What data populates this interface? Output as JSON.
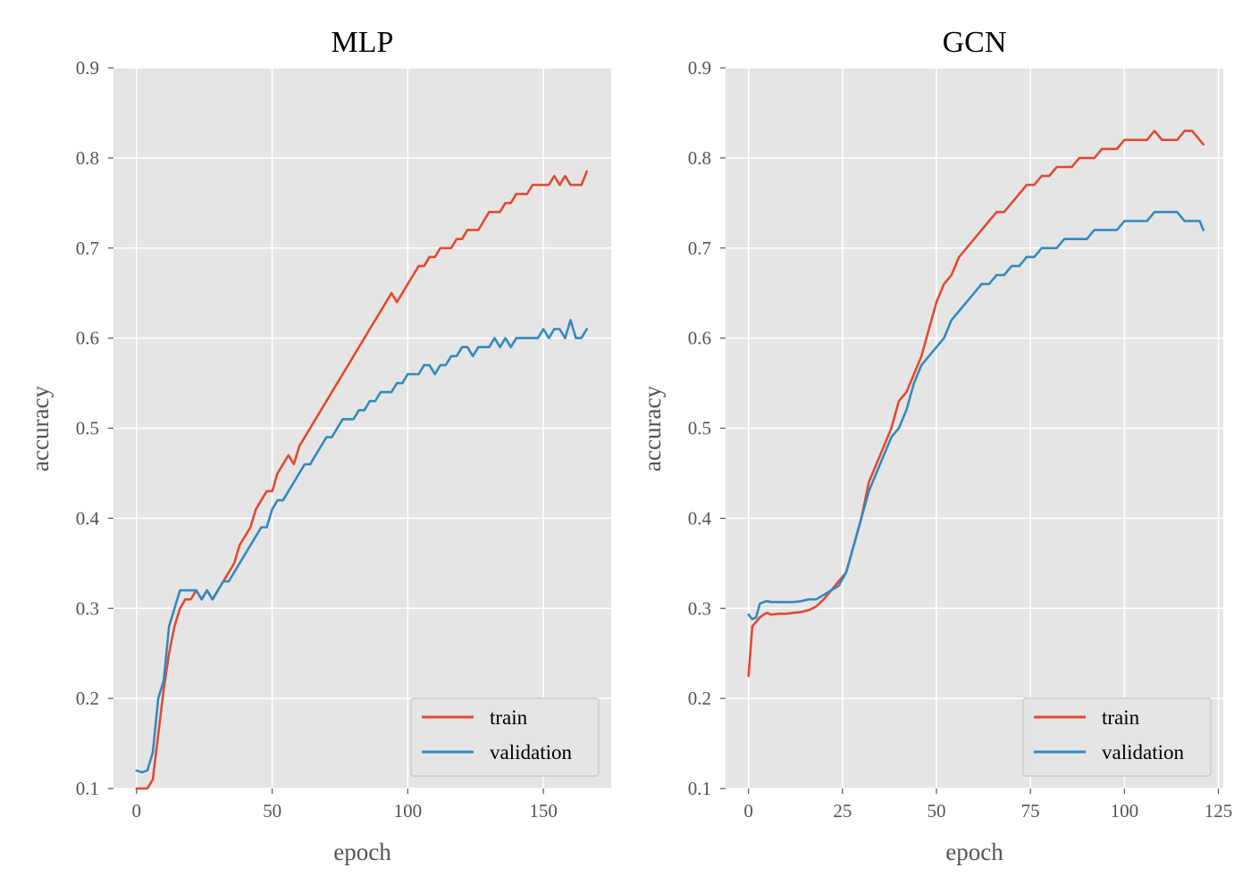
{
  "colors": {
    "figure_bg": "#ffffff",
    "axes_bg": "#e5e5e5",
    "grid": "#ffffff",
    "tick_text": "#555555",
    "title_text": "#000000",
    "train": "#e24a33",
    "validation": "#348abd",
    "legend_bg": "#e5e5e5",
    "legend_border": "#cccccc"
  },
  "chart_data": [
    {
      "type": "line",
      "title": "MLP",
      "xlabel": "epoch",
      "ylabel": "accuracy",
      "xlim": [
        -8.5,
        175
      ],
      "ylim": [
        0.1,
        0.9
      ],
      "xticks": [
        0,
        50,
        100,
        150
      ],
      "yticks": [
        0.1,
        0.2,
        0.3,
        0.4,
        0.5,
        0.6,
        0.7,
        0.8,
        0.9
      ],
      "xtick_labels": [
        "0",
        "50",
        "100",
        "150"
      ],
      "ytick_labels": [
        "0.1",
        "0.2",
        "0.3",
        "0.4",
        "0.5",
        "0.6",
        "0.7",
        "0.8",
        "0.9"
      ],
      "grid": true,
      "legend": "bottom-right",
      "series": [
        {
          "name": "train",
          "color": "#e24a33",
          "x": [
            0,
            2,
            4,
            6,
            8,
            10,
            12,
            14,
            16,
            18,
            20,
            22,
            24,
            26,
            28,
            30,
            32,
            34,
            36,
            38,
            40,
            42,
            44,
            46,
            48,
            50,
            52,
            54,
            56,
            58,
            60,
            62,
            64,
            66,
            68,
            70,
            72,
            74,
            76,
            78,
            80,
            82,
            84,
            86,
            88,
            90,
            92,
            94,
            96,
            98,
            100,
            102,
            104,
            106,
            108,
            110,
            112,
            114,
            116,
            118,
            120,
            122,
            124,
            126,
            128,
            130,
            132,
            134,
            136,
            138,
            140,
            142,
            144,
            146,
            148,
            150,
            152,
            154,
            156,
            158,
            160,
            162,
            164,
            166
          ],
          "y": [
            0.1,
            0.1,
            0.1,
            0.11,
            0.16,
            0.21,
            0.25,
            0.28,
            0.3,
            0.31,
            0.31,
            0.32,
            0.31,
            0.32,
            0.31,
            0.32,
            0.33,
            0.34,
            0.35,
            0.37,
            0.38,
            0.39,
            0.41,
            0.42,
            0.43,
            0.43,
            0.45,
            0.46,
            0.47,
            0.46,
            0.48,
            0.49,
            0.5,
            0.51,
            0.52,
            0.53,
            0.54,
            0.55,
            0.56,
            0.57,
            0.58,
            0.59,
            0.6,
            0.61,
            0.62,
            0.63,
            0.64,
            0.65,
            0.64,
            0.65,
            0.66,
            0.67,
            0.68,
            0.68,
            0.69,
            0.69,
            0.7,
            0.7,
            0.7,
            0.71,
            0.71,
            0.72,
            0.72,
            0.72,
            0.73,
            0.74,
            0.74,
            0.74,
            0.75,
            0.75,
            0.76,
            0.76,
            0.76,
            0.77,
            0.77,
            0.77,
            0.77,
            0.78,
            0.77,
            0.78,
            0.77,
            0.77,
            0.77,
            0.785
          ]
        },
        {
          "name": "validation",
          "color": "#348abd",
          "x": [
            0,
            2,
            4,
            6,
            8,
            10,
            12,
            14,
            16,
            18,
            20,
            22,
            24,
            26,
            28,
            30,
            32,
            34,
            36,
            38,
            40,
            42,
            44,
            46,
            48,
            50,
            52,
            54,
            56,
            58,
            60,
            62,
            64,
            66,
            68,
            70,
            72,
            74,
            76,
            78,
            80,
            82,
            84,
            86,
            88,
            90,
            92,
            94,
            96,
            98,
            100,
            102,
            104,
            106,
            108,
            110,
            112,
            114,
            116,
            118,
            120,
            122,
            124,
            126,
            128,
            130,
            132,
            134,
            136,
            138,
            140,
            142,
            144,
            146,
            148,
            150,
            152,
            154,
            156,
            158,
            160,
            162,
            164,
            166
          ],
          "y": [
            0.12,
            0.118,
            0.12,
            0.14,
            0.2,
            0.22,
            0.28,
            0.3,
            0.32,
            0.32,
            0.32,
            0.32,
            0.31,
            0.32,
            0.31,
            0.32,
            0.33,
            0.33,
            0.34,
            0.35,
            0.36,
            0.37,
            0.38,
            0.39,
            0.39,
            0.41,
            0.42,
            0.42,
            0.43,
            0.44,
            0.45,
            0.46,
            0.46,
            0.47,
            0.48,
            0.49,
            0.49,
            0.5,
            0.51,
            0.51,
            0.51,
            0.52,
            0.52,
            0.53,
            0.53,
            0.54,
            0.54,
            0.54,
            0.55,
            0.55,
            0.56,
            0.56,
            0.56,
            0.57,
            0.57,
            0.56,
            0.57,
            0.57,
            0.58,
            0.58,
            0.59,
            0.59,
            0.58,
            0.59,
            0.59,
            0.59,
            0.6,
            0.59,
            0.6,
            0.59,
            0.6,
            0.6,
            0.6,
            0.6,
            0.6,
            0.61,
            0.6,
            0.61,
            0.61,
            0.6,
            0.62,
            0.6,
            0.6,
            0.61
          ]
        }
      ]
    },
    {
      "type": "line",
      "title": "GCN",
      "xlabel": "epoch",
      "ylabel": "accuracy",
      "xlim": [
        -6.1,
        126.3
      ],
      "ylim": [
        0.1,
        0.9
      ],
      "xticks": [
        0,
        25,
        50,
        75,
        100,
        125
      ],
      "yticks": [
        0.1,
        0.2,
        0.3,
        0.4,
        0.5,
        0.6,
        0.7,
        0.8,
        0.9
      ],
      "xtick_labels": [
        "0",
        "25",
        "50",
        "75",
        "100",
        "125"
      ],
      "ytick_labels": [
        "0.1",
        "0.2",
        "0.3",
        "0.4",
        "0.5",
        "0.6",
        "0.7",
        "0.8",
        "0.9"
      ],
      "grid": true,
      "legend": "bottom-right",
      "series": [
        {
          "name": "train",
          "color": "#e24a33",
          "x": [
            0,
            1,
            2,
            3,
            4,
            5,
            6,
            8,
            10,
            12,
            14,
            16,
            18,
            20,
            22,
            24,
            26,
            28,
            30,
            32,
            34,
            36,
            38,
            40,
            42,
            44,
            46,
            48,
            50,
            52,
            54,
            56,
            58,
            60,
            62,
            64,
            66,
            68,
            70,
            72,
            74,
            76,
            78,
            80,
            82,
            84,
            86,
            88,
            90,
            92,
            94,
            96,
            98,
            100,
            102,
            104,
            106,
            108,
            110,
            112,
            114,
            116,
            118,
            120,
            121
          ],
          "y": [
            0.225,
            0.28,
            0.285,
            0.29,
            0.293,
            0.295,
            0.293,
            0.294,
            0.294,
            0.295,
            0.296,
            0.298,
            0.302,
            0.31,
            0.32,
            0.33,
            0.34,
            0.37,
            0.4,
            0.44,
            0.46,
            0.48,
            0.5,
            0.53,
            0.54,
            0.56,
            0.58,
            0.61,
            0.64,
            0.66,
            0.67,
            0.69,
            0.7,
            0.71,
            0.72,
            0.73,
            0.74,
            0.74,
            0.75,
            0.76,
            0.77,
            0.77,
            0.78,
            0.78,
            0.79,
            0.79,
            0.79,
            0.8,
            0.8,
            0.8,
            0.81,
            0.81,
            0.81,
            0.82,
            0.82,
            0.82,
            0.82,
            0.83,
            0.82,
            0.82,
            0.82,
            0.83,
            0.83,
            0.82,
            0.815
          ]
        },
        {
          "name": "validation",
          "color": "#348abd",
          "x": [
            0,
            1,
            2,
            3,
            4,
            5,
            6,
            8,
            10,
            12,
            14,
            16,
            18,
            20,
            22,
            24,
            26,
            28,
            30,
            32,
            34,
            36,
            38,
            40,
            42,
            44,
            46,
            48,
            50,
            52,
            54,
            56,
            58,
            60,
            62,
            64,
            66,
            68,
            70,
            72,
            74,
            76,
            78,
            80,
            82,
            84,
            86,
            88,
            90,
            92,
            94,
            96,
            98,
            100,
            102,
            104,
            106,
            108,
            110,
            112,
            114,
            116,
            118,
            120,
            121
          ],
          "y": [
            0.293,
            0.288,
            0.29,
            0.305,
            0.307,
            0.308,
            0.307,
            0.307,
            0.307,
            0.307,
            0.308,
            0.31,
            0.31,
            0.315,
            0.32,
            0.325,
            0.34,
            0.37,
            0.4,
            0.43,
            0.45,
            0.47,
            0.49,
            0.5,
            0.52,
            0.55,
            0.57,
            0.58,
            0.59,
            0.6,
            0.62,
            0.63,
            0.64,
            0.65,
            0.66,
            0.66,
            0.67,
            0.67,
            0.68,
            0.68,
            0.69,
            0.69,
            0.7,
            0.7,
            0.7,
            0.71,
            0.71,
            0.71,
            0.71,
            0.72,
            0.72,
            0.72,
            0.72,
            0.73,
            0.73,
            0.73,
            0.73,
            0.74,
            0.74,
            0.74,
            0.74,
            0.73,
            0.73,
            0.73,
            0.72
          ]
        }
      ]
    }
  ]
}
